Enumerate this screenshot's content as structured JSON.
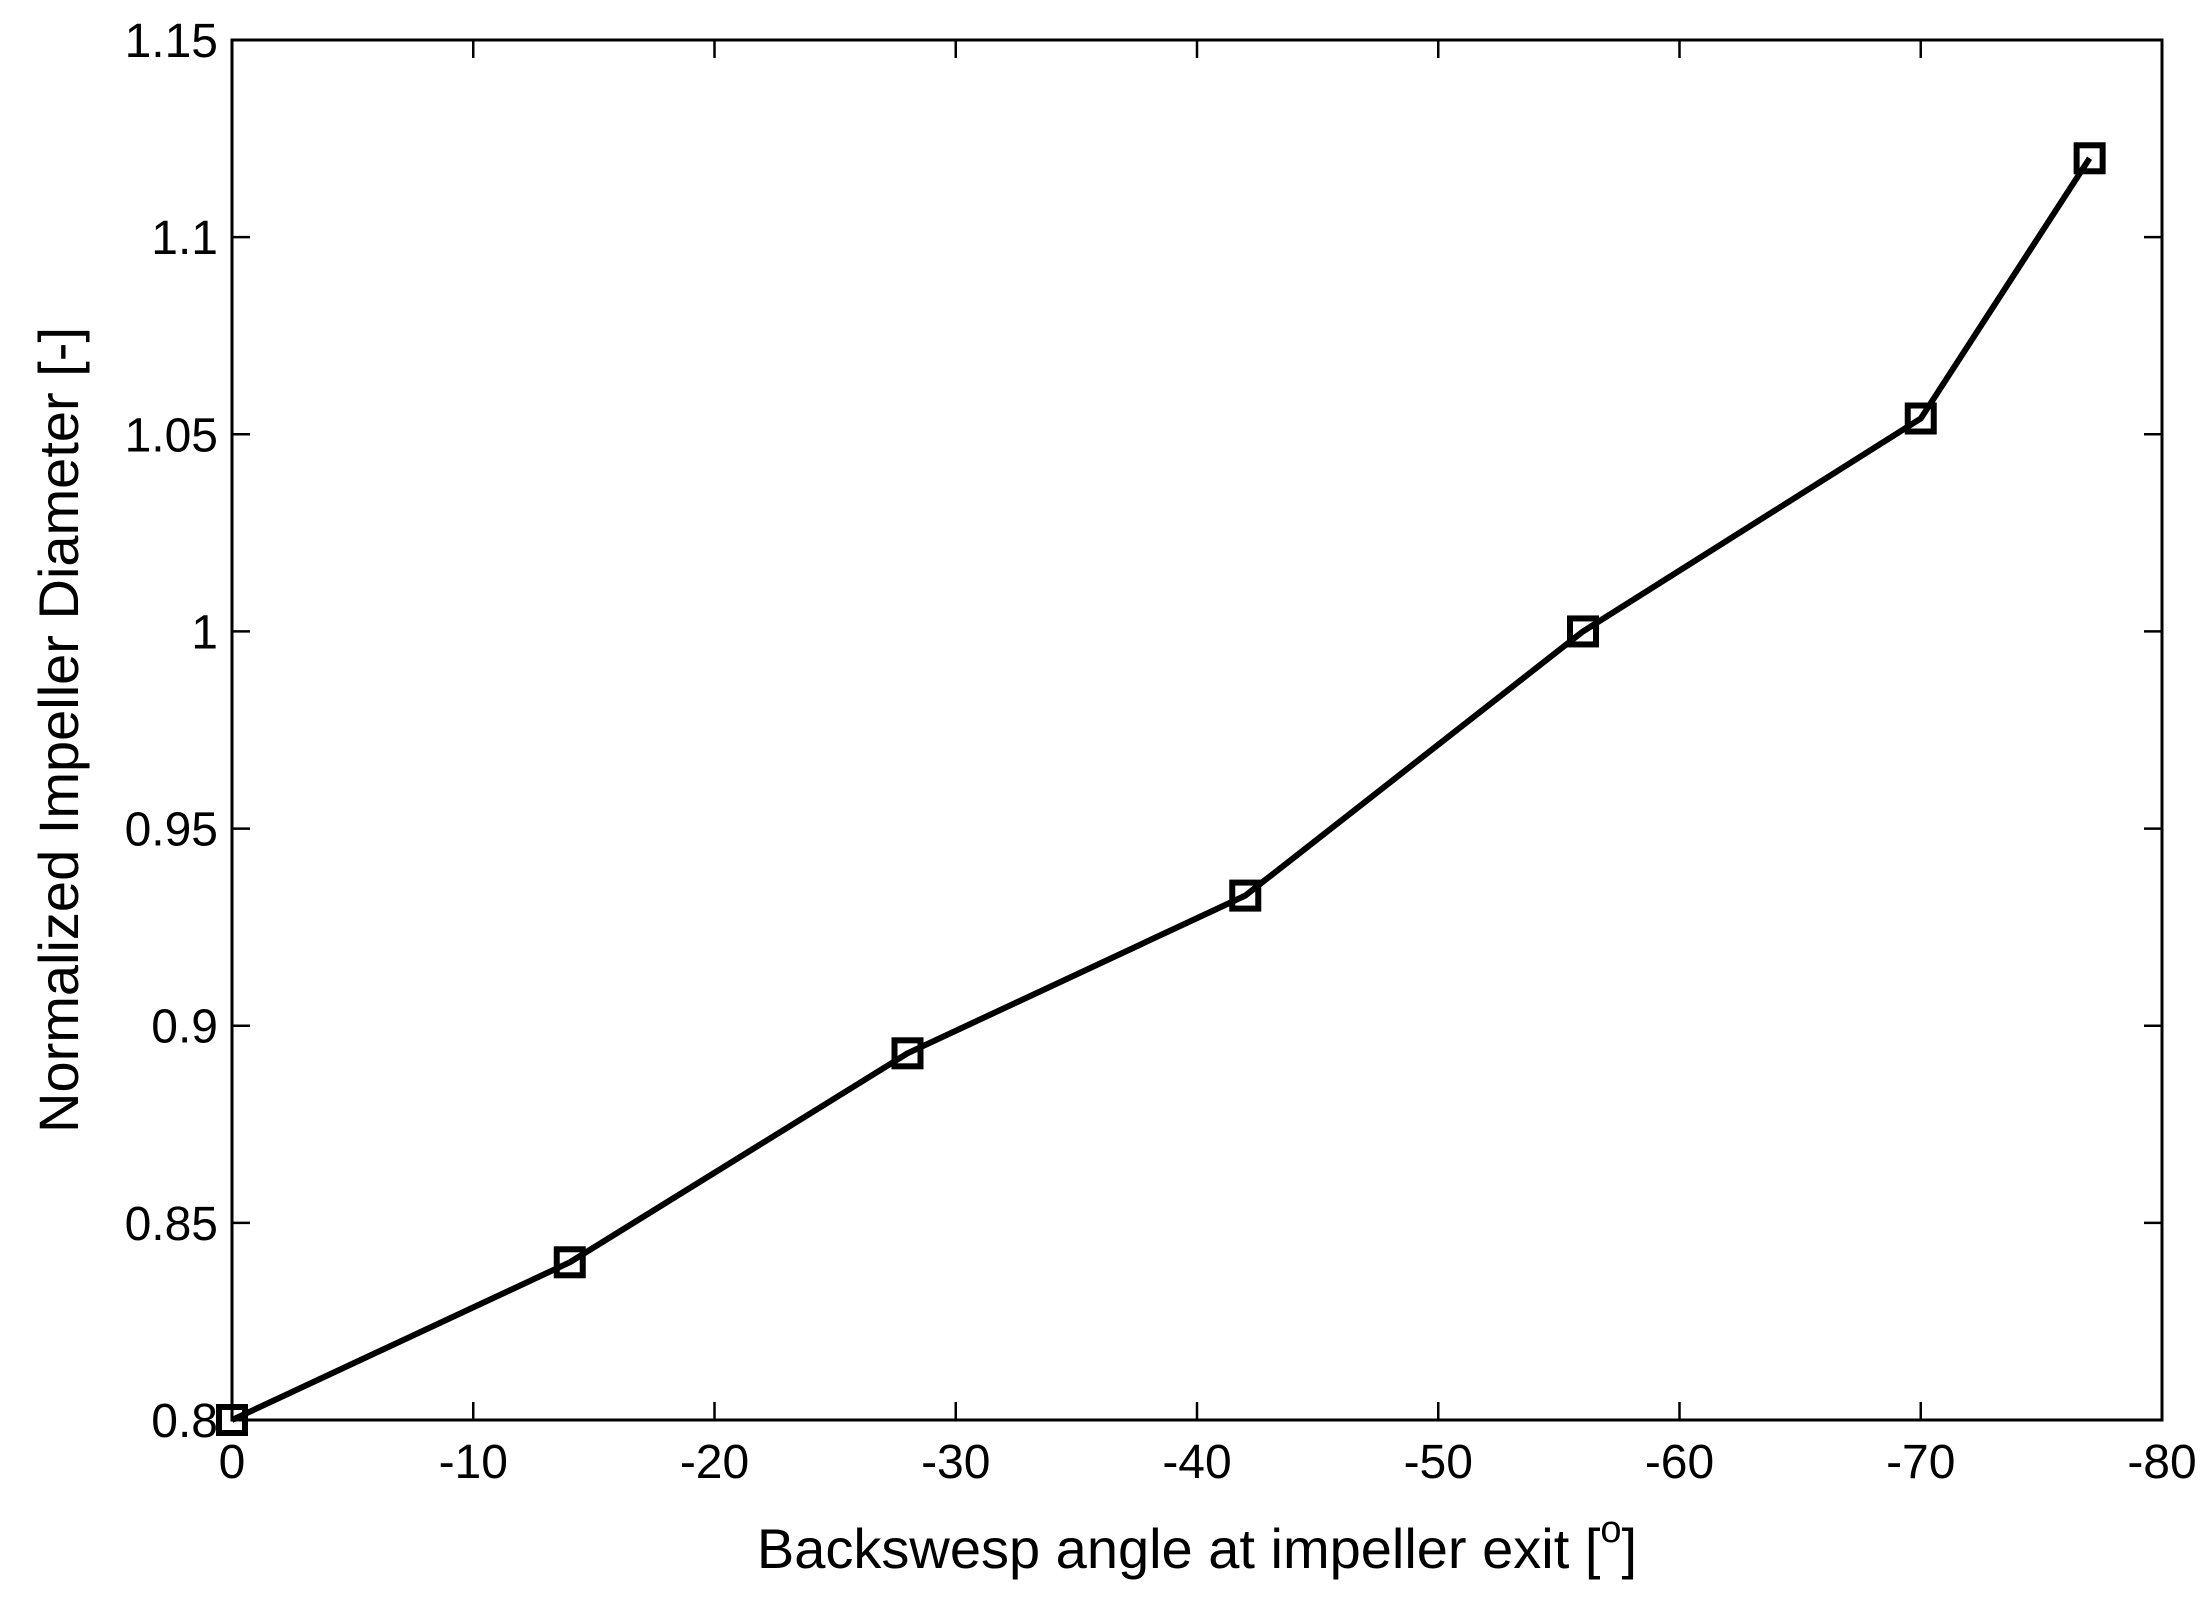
{
  "chart_data": {
    "type": "line",
    "title": "",
    "xlabel": {
      "prefix": "Backswesp angle at impeller exit [",
      "superscript": "o",
      "suffix": "]"
    },
    "ylabel": "Normalized Impeller Diameter [-]",
    "xlim": [
      0,
      -80
    ],
    "ylim": [
      0.8,
      1.15
    ],
    "x_reversed": true,
    "grid": false,
    "legend": "none",
    "x_ticks": [
      0,
      -10,
      -20,
      -30,
      -40,
      -50,
      -60,
      -70,
      -80
    ],
    "x_tick_labels": [
      "0",
      "-10",
      "-20",
      "-30",
      "-40",
      "-50",
      "-60",
      "-70",
      "-80"
    ],
    "y_ticks": [
      0.8,
      0.85,
      0.9,
      0.95,
      1.0,
      1.05,
      1.1,
      1.15
    ],
    "y_tick_labels": [
      "0.8",
      "0.85",
      "0.9",
      "0.95",
      "1",
      "1.05",
      "1.1",
      "1.15"
    ],
    "series": [
      {
        "marker": "square",
        "color": "#000000",
        "x": [
          0,
          -14,
          -28,
          -42,
          -56,
          -70,
          -77
        ],
        "y": [
          0.8,
          0.84,
          0.893,
          0.933,
          1.0,
          1.054,
          1.12
        ]
      }
    ]
  }
}
